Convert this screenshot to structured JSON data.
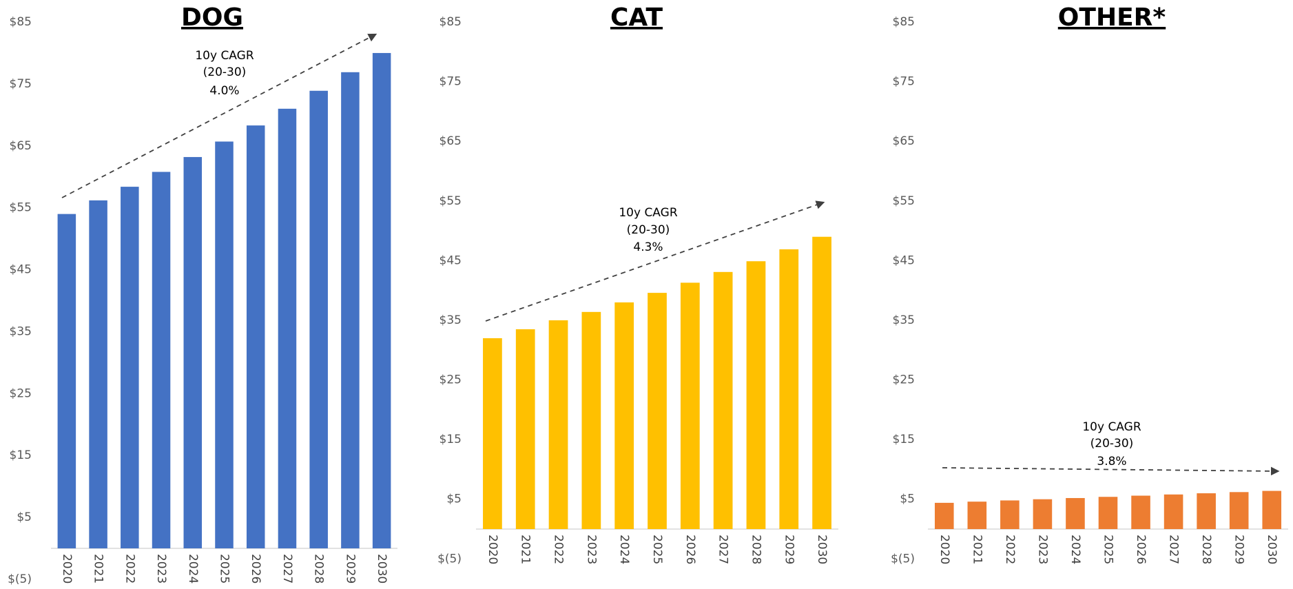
{
  "chart_data": [
    {
      "type": "bar",
      "title": "DOG",
      "color": "#4472c4",
      "categories": [
        "2020",
        "2021",
        "2022",
        "2023",
        "2024",
        "2025",
        "2026",
        "2027",
        "2028",
        "2029",
        "2030"
      ],
      "values": [
        54,
        56.2,
        58.4,
        60.8,
        63.2,
        65.7,
        68.3,
        71,
        73.9,
        76.9,
        80
      ],
      "ylim": [
        -5,
        85
      ],
      "yticks": [
        {
          "value": 85,
          "label": "$85"
        },
        {
          "value": 75,
          "label": "$75"
        },
        {
          "value": 65,
          "label": "$65"
        },
        {
          "value": 55,
          "label": "$55"
        },
        {
          "value": 45,
          "label": "$45"
        },
        {
          "value": 35,
          "label": "$35"
        },
        {
          "value": 25,
          "label": "$25"
        },
        {
          "value": 15,
          "label": "$15"
        },
        {
          "value": 5,
          "label": "$5"
        },
        {
          "value": -5,
          "label": "$(5)"
        }
      ],
      "annotation": [
        "10y CAGR",
        "(20-30)",
        "4.0%"
      ]
    },
    {
      "type": "bar",
      "title": "CAT",
      "color": "#ffc000",
      "categories": [
        "2020",
        "2021",
        "2022",
        "2023",
        "2024",
        "2025",
        "2026",
        "2027",
        "2028",
        "2029",
        "2030"
      ],
      "values": [
        32,
        33.5,
        35,
        36.4,
        38,
        39.6,
        41.3,
        43.1,
        44.9,
        46.9,
        49
      ],
      "ylim": [
        -5,
        85
      ],
      "yticks": [
        {
          "value": 85,
          "label": "$85"
        },
        {
          "value": 75,
          "label": "$75"
        },
        {
          "value": 65,
          "label": "$65"
        },
        {
          "value": 55,
          "label": "$55"
        },
        {
          "value": 45,
          "label": "$45"
        },
        {
          "value": 35,
          "label": "$35"
        },
        {
          "value": 25,
          "label": "$25"
        },
        {
          "value": 15,
          "label": "$15"
        },
        {
          "value": 5,
          "label": "$5"
        },
        {
          "value": -5,
          "label": "$(5)"
        }
      ],
      "annotation": [
        "10y CAGR",
        "(20-30)",
        "4.3%"
      ]
    },
    {
      "type": "bar",
      "title": "OTHER*",
      "color": "#ed7d31",
      "categories": [
        "2020",
        "2021",
        "2022",
        "2023",
        "2024",
        "2025",
        "2026",
        "2027",
        "2028",
        "2029",
        "2030"
      ],
      "values": [
        4.4,
        4.6,
        4.8,
        5.0,
        5.2,
        5.4,
        5.6,
        5.8,
        6.0,
        6.2,
        6.4
      ],
      "ylim": [
        -5,
        85
      ],
      "yticks": [
        {
          "value": 85,
          "label": "$85"
        },
        {
          "value": 75,
          "label": "$75"
        },
        {
          "value": 65,
          "label": "$65"
        },
        {
          "value": 55,
          "label": "$55"
        },
        {
          "value": 45,
          "label": "$45"
        },
        {
          "value": 35,
          "label": "$35"
        },
        {
          "value": 25,
          "label": "$25"
        },
        {
          "value": 15,
          "label": "$15"
        },
        {
          "value": 5,
          "label": "$5"
        },
        {
          "value": -5,
          "label": "$(5)"
        }
      ],
      "annotation": [
        "10y CAGR",
        "(20-30)",
        "3.8%"
      ]
    }
  ]
}
